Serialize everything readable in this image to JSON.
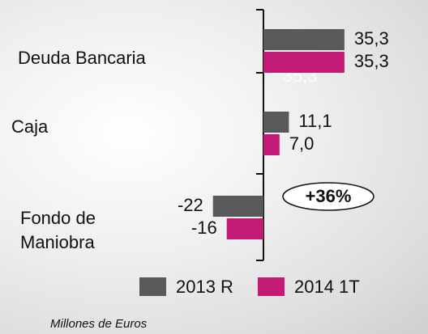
{
  "chart_data": {
    "type": "hbar",
    "categories": [
      "Deuda Bancaria",
      "Caja",
      "Fondo de Maniobra"
    ],
    "series": [
      {
        "name": "2013 R",
        "color": "#58595b",
        "values": [
          35.3,
          11.1,
          -22
        ],
        "value_labels": [
          "35,3",
          "11,1",
          "-22"
        ]
      },
      {
        "name": "2014 1T",
        "color": "#c21a75",
        "values": [
          35.3,
          7.0,
          -16
        ],
        "value_labels": [
          "35,3",
          "7,0",
          "-16"
        ]
      }
    ],
    "annotations": [
      "+36%",
      "35,3"
    ],
    "note": "Millones de Euros"
  }
}
